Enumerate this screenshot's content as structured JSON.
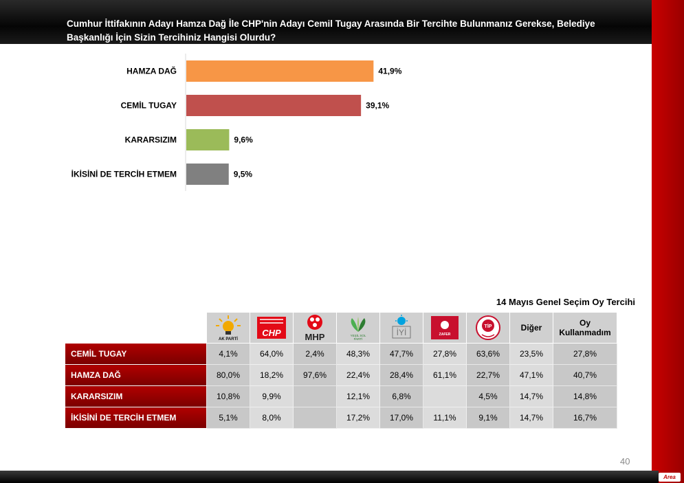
{
  "header": {
    "title": "Cumhur İttifakının Adayı Hamza Dağ İle CHP'nin Adayı Cemil Tugay Arasında Bir Tercihte Bulunmanız Gerekse, Belediye Başkanlığı İçin Sizin Tercihiniz Hangisi Olurdu?"
  },
  "chart_data": {
    "type": "bar",
    "orientation": "horizontal",
    "categories": [
      "HAMZA DAĞ",
      "CEMİL TUGAY",
      "KARARSIZIM",
      "İKİSİNİ DE TERCİH ETMEM"
    ],
    "values": [
      41.9,
      39.1,
      9.6,
      9.5
    ],
    "value_labels": [
      "41,9%",
      "39,1%",
      "9,6%",
      "9,5%"
    ],
    "colors": [
      "#f79646",
      "#c0504d",
      "#9bbb59",
      "#808080"
    ],
    "xlim": [
      0,
      100
    ]
  },
  "table": {
    "title": "14 Mayıs Genel Seçim Oy Tercihi",
    "columns": [
      {
        "logo": "akp-logo",
        "label": "AK PARTİ"
      },
      {
        "logo": "chp-logo",
        "label": "CHP"
      },
      {
        "logo": "mhp-logo",
        "label": "MHP"
      },
      {
        "logo": "yesil-sol-logo",
        "label": "YEŞİL SOL PARTİ"
      },
      {
        "logo": "iyi-logo",
        "label": "İYİ"
      },
      {
        "logo": "zafer-logo",
        "label": "ZAFER PARTİSİ"
      },
      {
        "logo": "tip-logo",
        "label": "TİP"
      },
      {
        "label": "Diğer"
      },
      {
        "label": "Oy Kullanmadım"
      }
    ],
    "rows": [
      {
        "label": "CEMİL TUGAY",
        "values": [
          "4,1%",
          "64,0%",
          "2,4%",
          "48,3%",
          "47,7%",
          "27,8%",
          "63,6%",
          "23,5%",
          "27,8%"
        ]
      },
      {
        "label": "HAMZA DAĞ",
        "values": [
          "80,0%",
          "18,2%",
          "97,6%",
          "22,4%",
          "28,4%",
          "61,1%",
          "22,7%",
          "47,1%",
          "40,7%"
        ]
      },
      {
        "label": "KARARSIZIM",
        "values": [
          "10,8%",
          "9,9%",
          "",
          "12,1%",
          "6,8%",
          "",
          "4,5%",
          "14,7%",
          "14,8%"
        ]
      },
      {
        "label": "İKİSİNİ DE TERCİH ETMEM",
        "values": [
          "5,1%",
          "8,0%",
          "",
          "17,2%",
          "17,0%",
          "11,1%",
          "9,1%",
          "14,7%",
          "16,7%"
        ]
      }
    ]
  },
  "footer": {
    "page_number": "40",
    "brand": "Area"
  },
  "colors": {
    "accent_red": "#c00000",
    "header_black": "#000000"
  }
}
